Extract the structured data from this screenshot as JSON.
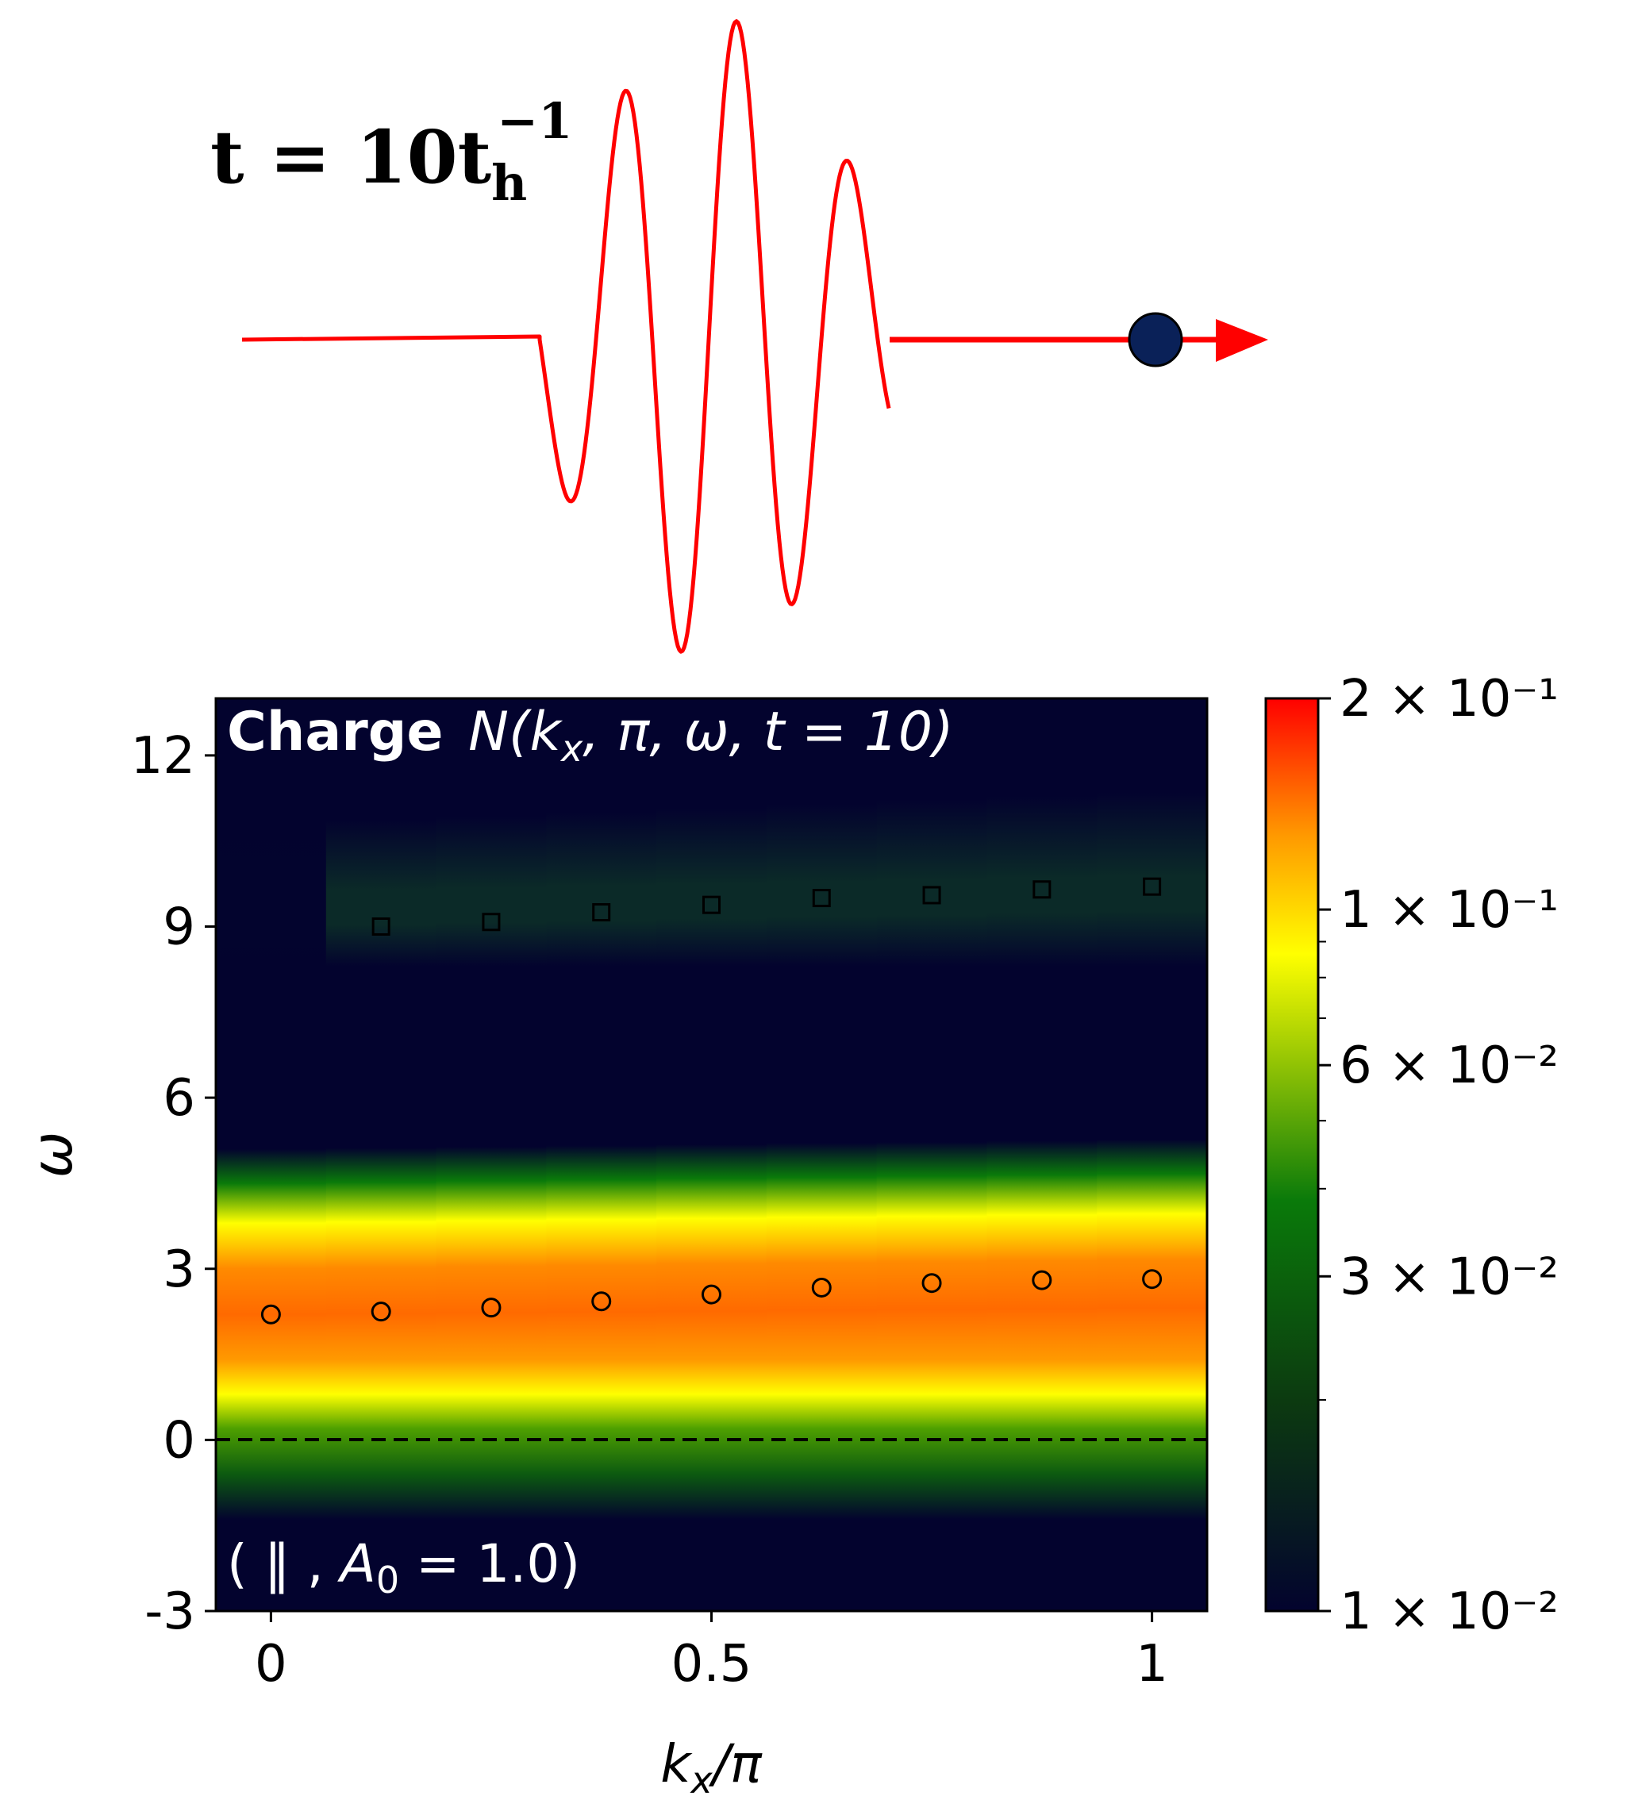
{
  "pulse": {
    "time_label": {
      "base": "t = 10t",
      "sub": "h",
      "sup": "−1"
    },
    "color": "#ff0000",
    "dot_color": "#0a2158"
  },
  "chart_data": {
    "type": "heatmap",
    "title_prefix": "Charge",
    "title_math": "N(k_x, π, ω, t = 10)",
    "annotation": "( ‖ , A_0 = 1.0)",
    "xlabel": "k_x/π",
    "ylabel": "ω",
    "xlim": [
      -0.0625,
      1.0625
    ],
    "ylim": [
      -3,
      13
    ],
    "xticks": [
      {
        "value": 0,
        "label": "0"
      },
      {
        "value": 0.5,
        "label": "0.5"
      },
      {
        "value": 1,
        "label": "1"
      }
    ],
    "yticks": [
      {
        "value": -3,
        "label": "-3"
      },
      {
        "value": 0,
        "label": "0"
      },
      {
        "value": 3,
        "label": "3"
      },
      {
        "value": 6,
        "label": "6"
      },
      {
        "value": 9,
        "label": "9"
      },
      {
        "value": 12,
        "label": "12"
      }
    ],
    "kx_columns": [
      0,
      0.125,
      0.25,
      0.375,
      0.5,
      0.625,
      0.75,
      0.875,
      1.0
    ],
    "colorbar": {
      "scale": "log",
      "range": [
        0.01,
        0.2
      ],
      "ticks": [
        {
          "value": 0.2,
          "label": "2 × 10⁻¹"
        },
        {
          "value": 0.1,
          "label": "1 × 10⁻¹"
        },
        {
          "value": 0.06,
          "label": "6 × 10⁻²"
        },
        {
          "value": 0.03,
          "label": "3 × 10⁻²"
        },
        {
          "value": 0.01,
          "label": "1 × 10⁻²"
        }
      ],
      "colors": [
        "#03032e",
        "#0c3a10",
        "#0a7a0a",
        "#ffff00",
        "#ff9900",
        "#ff0000"
      ]
    },
    "series": [
      {
        "marker": "circle",
        "x": [
          0,
          0.125,
          0.25,
          0.375,
          0.5,
          0.625,
          0.75,
          0.875,
          1.0
        ],
        "y": [
          2.2,
          2.25,
          2.32,
          2.43,
          2.55,
          2.67,
          2.75,
          2.8,
          2.82
        ]
      },
      {
        "marker": "square",
        "x": [
          0.125,
          0.25,
          0.375,
          0.5,
          0.625,
          0.75,
          0.875,
          1.0
        ],
        "y": [
          9.0,
          9.08,
          9.25,
          9.38,
          9.5,
          9.55,
          9.65,
          9.7
        ]
      }
    ],
    "reference_line": {
      "y": 0,
      "style": "dashed"
    }
  }
}
